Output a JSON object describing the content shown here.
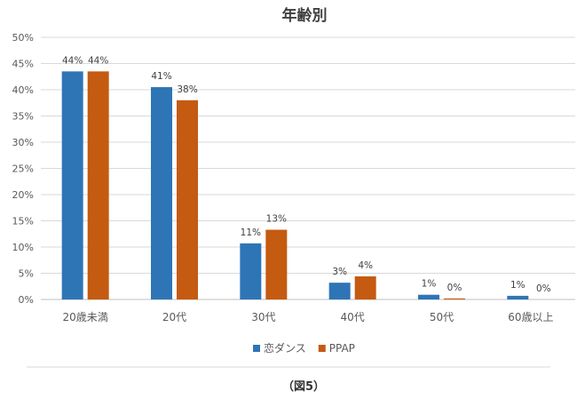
{
  "chart_data": {
    "type": "bar",
    "title": "年齢別",
    "categories": [
      "20歳未満",
      "20代",
      "30代",
      "40代",
      "50代",
      "60歳以上"
    ],
    "series": [
      {
        "name": "恋ダンス",
        "color": "#2E75B6",
        "values": [
          43.5,
          40.5,
          10.7,
          3.2,
          0.9,
          0.7
        ],
        "labels": [
          "44%",
          "41%",
          "11%",
          "3%",
          "1%",
          "1%"
        ]
      },
      {
        "name": "PPAP",
        "color": "#C55A11",
        "values": [
          43.5,
          38.0,
          13.3,
          4.4,
          0.2,
          0.0
        ],
        "labels": [
          "44%",
          "38%",
          "13%",
          "4%",
          "0%",
          "0%"
        ]
      }
    ],
    "y_ticks": [
      "0%",
      "5%",
      "10%",
      "15%",
      "20%",
      "25%",
      "30%",
      "35%",
      "40%",
      "45%",
      "50%"
    ],
    "ylim": [
      0,
      50
    ],
    "grid": true,
    "legend": "bottom",
    "xlabel": "",
    "ylabel": ""
  },
  "caption": "（図5）"
}
